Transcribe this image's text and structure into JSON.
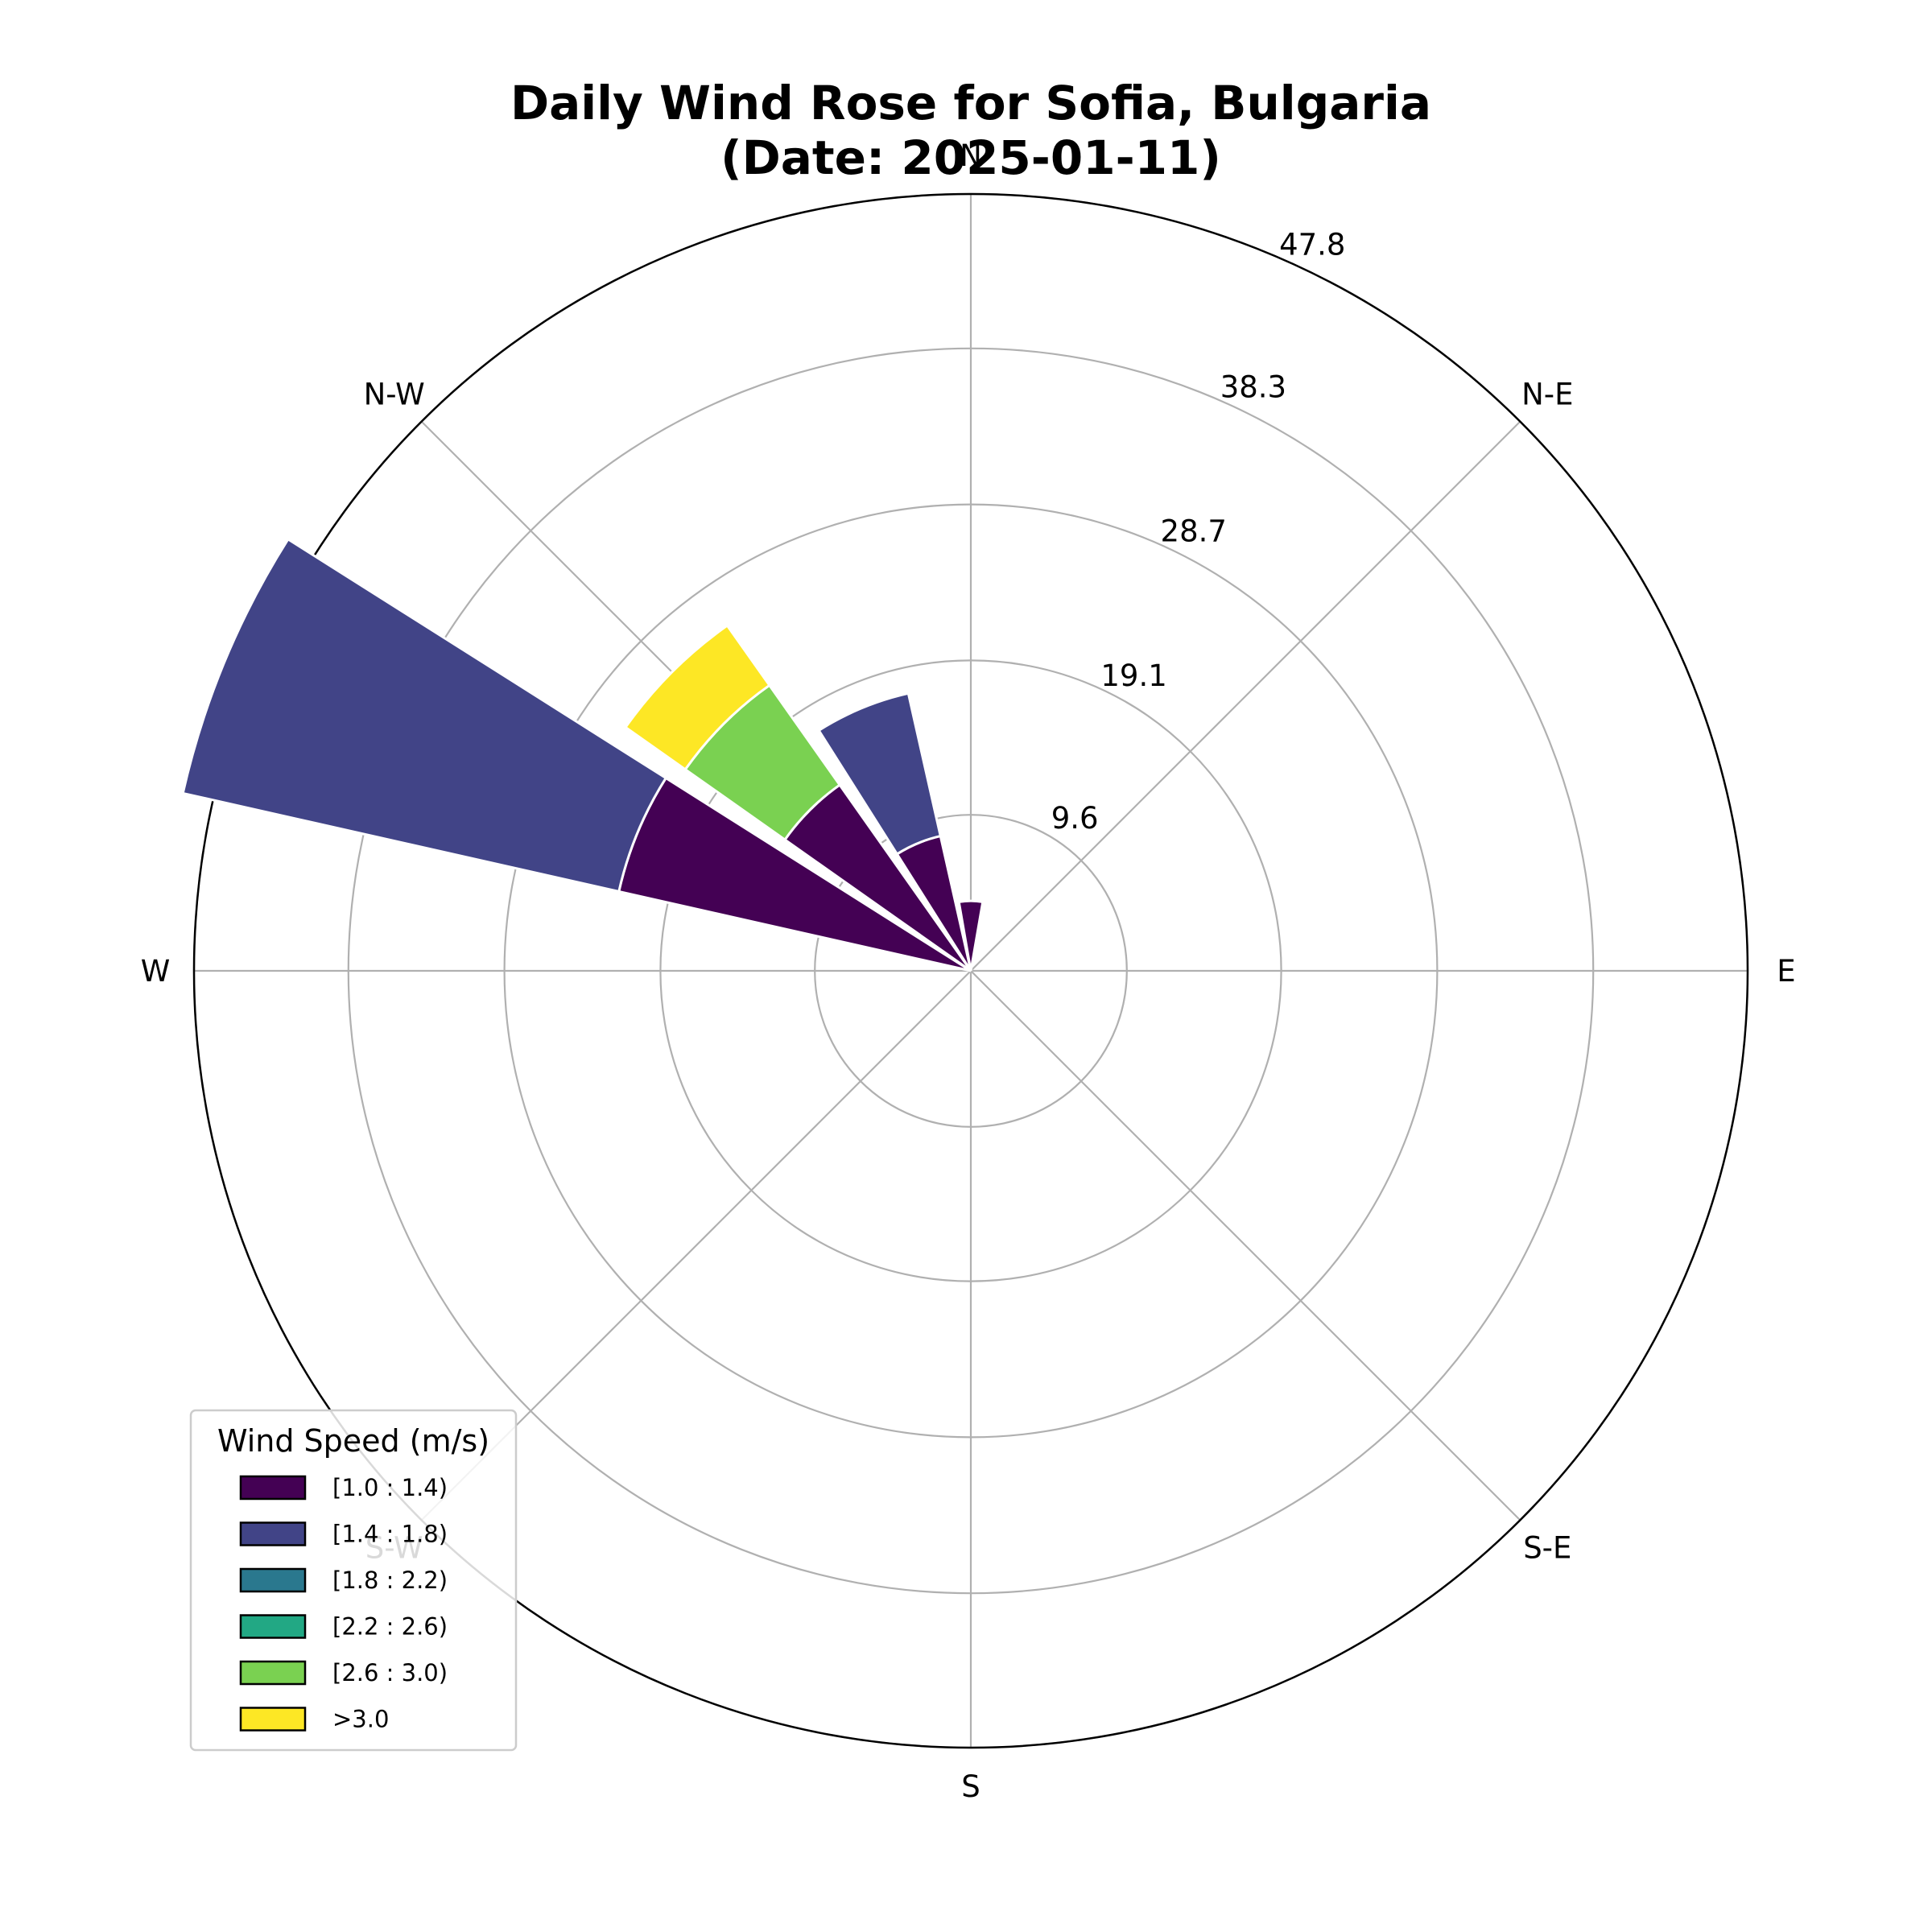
{
  "chart_data": {
    "type": "windrose",
    "title_line1": "Daily Wind Rose for Sofia, Bulgaria",
    "title_line2": "(Date: 2025-01-11)",
    "directions": [
      "N",
      "N-E",
      "E",
      "S-E",
      "S",
      "S-W",
      "W",
      "N-W"
    ],
    "radial_ticks": [
      "9.6",
      "19.1",
      "28.7",
      "38.3",
      "47.8"
    ],
    "radial_max": 47.8,
    "legend": {
      "title": "Wind Speed (m/s)",
      "placement": "lower-left",
      "bins": [
        {
          "label": "[1.0 : 1.4)",
          "color": "#440154"
        },
        {
          "label": "[1.4 : 1.8)",
          "color": "#414487"
        },
        {
          "label": "[1.8 : 2.2)",
          "color": "#2a788e"
        },
        {
          "label": "[2.2 : 2.6)",
          "color": "#22a884"
        },
        {
          "label": "[2.6 : 3.0)",
          "color": "#7ad151"
        },
        {
          "label": ">3.0",
          "color": "#fde725"
        }
      ]
    },
    "sectors": [
      {
        "direction_deg": 0,
        "segments": [
          4.3,
          0,
          0,
          0,
          0,
          0
        ]
      },
      {
        "direction_deg": 337.5,
        "segments": [
          8.5,
          9.0,
          0,
          0,
          0,
          0
        ]
      },
      {
        "direction_deg": 315,
        "segments": [
          14.0,
          0,
          0,
          0,
          7.5,
          4.5
        ]
      },
      {
        "direction_deg": 292.5,
        "segments": [
          22.2,
          27.5,
          0,
          0,
          0,
          0
        ]
      }
    ]
  }
}
